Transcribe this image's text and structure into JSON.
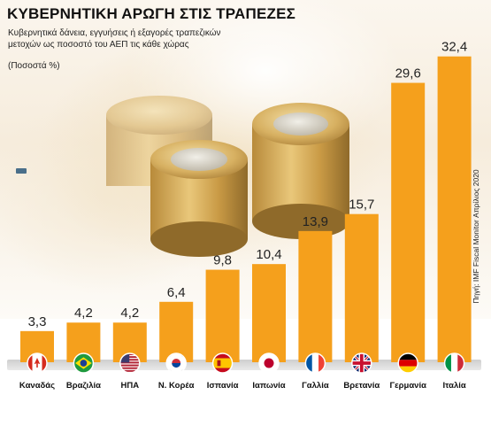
{
  "header": {
    "title": "ΚΥΒΕΡΝΗΤΙΚΗ ΑΡΩΓΗ ΣΤΙΣ ΤΡΑΠΕΖΕΣ",
    "subtitle": "Κυβερνητικά δάνεια, εγγυήσεις ή εξαγορές τραπεζικών μετοχών ως ποσοστό του ΑΕΠ τις κάθε χώρας",
    "unit_note": "(Ποσοστά %)"
  },
  "source": "Πηγή: IMF Fiscal Monitor Απρίλιος 2020",
  "colors": {
    "bar": "#f5a01c",
    "bar_dark": "#e08a10",
    "baseline": "#d6d6d6"
  },
  "chart_data": {
    "type": "bar",
    "title": "ΚΥΒΕΡΝΗΤΙΚΗ ΑΡΩΓΗ ΣΤΙΣ ΤΡΑΠΕΖΕΣ",
    "ylabel": "",
    "xlabel": "",
    "unit": "%",
    "ylim": [
      0,
      35
    ],
    "categories": [
      "Καναδάς",
      "Βραζιλία",
      "ΗΠΑ",
      "Ν. Κορέα",
      "Ισπανία",
      "Ιαπωνία",
      "Γαλλία",
      "Βρετανία",
      "Γερμανία",
      "Ιταλία"
    ],
    "value_labels": [
      "3,3",
      "4,2",
      "4,2",
      "6,4",
      "9,8",
      "10,4",
      "13,9",
      "15,7",
      "29,6",
      "32,4"
    ],
    "values": [
      3.3,
      4.2,
      4.2,
      6.4,
      9.8,
      10.4,
      13.9,
      15.7,
      29.6,
      32.4
    ],
    "flags": [
      "canada-flag-icon",
      "brazil-flag-icon",
      "usa-flag-icon",
      "south-korea-flag-icon",
      "spain-flag-icon",
      "japan-flag-icon",
      "france-flag-icon",
      "uk-flag-icon",
      "germany-flag-icon",
      "italy-flag-icon"
    ],
    "grid": false,
    "legend": "none"
  }
}
